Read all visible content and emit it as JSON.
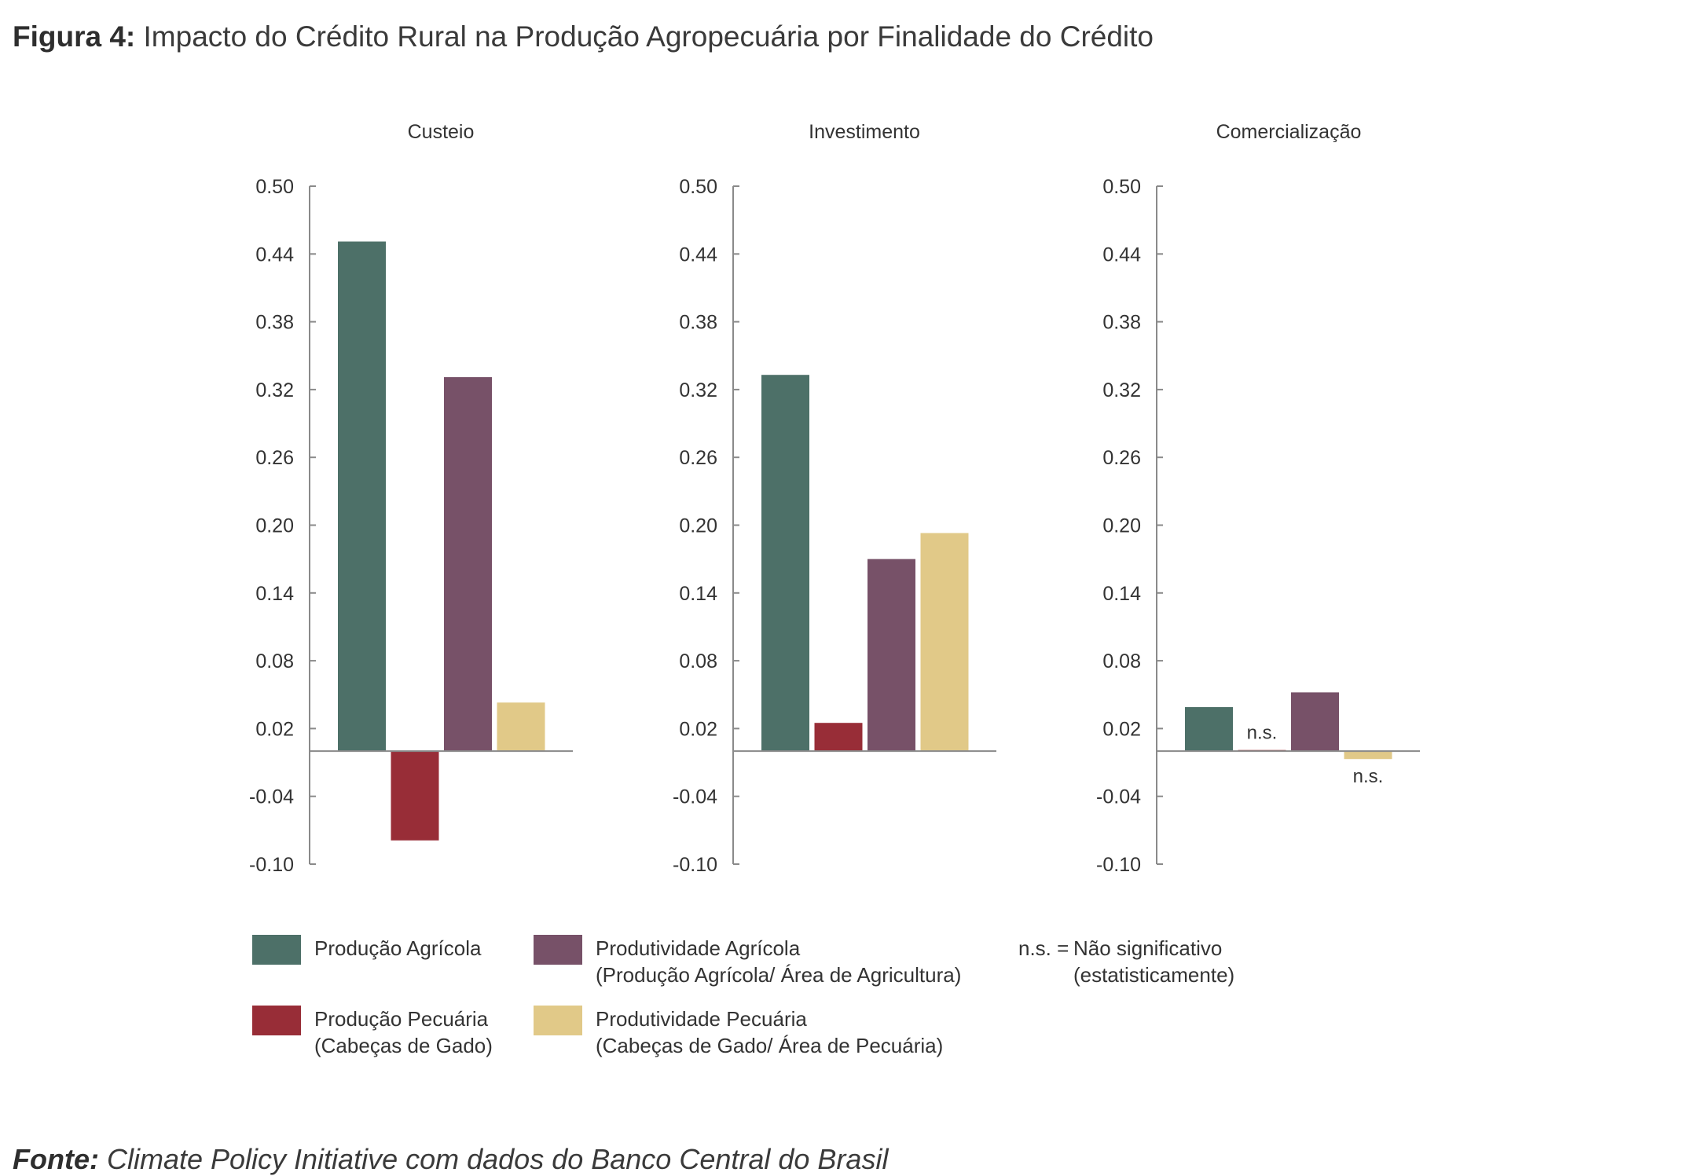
{
  "header": {
    "title_prefix": "Figura 4:",
    "title_text": " Impacto do Crédito Rural na Produção Agropecuária por Finalidade do Crédito"
  },
  "chart_data": {
    "type": "bar",
    "categories": [
      "Custeio",
      "Investimento",
      "Comercialização"
    ],
    "y_ticks": [
      "0.50",
      "0.44",
      "0.38",
      "0.32",
      "0.26",
      "0.20",
      "0.14",
      "0.08",
      "0.02",
      "-0.04",
      "-0.10"
    ],
    "ylim": [
      -0.1,
      0.5
    ],
    "series": [
      {
        "name": "Produção Agrícola",
        "color": "#4d7068",
        "values": [
          0.451,
          0.333,
          0.039
        ]
      },
      {
        "name": "Produção Pecuária (Cabeças de Gado)",
        "color": "#982d37",
        "values": [
          -0.079,
          0.025,
          0.001
        ]
      },
      {
        "name": "Produtividade Agrícola (Produção Agrícola/ Área de Agricultura)",
        "color": "#775168",
        "values": [
          0.331,
          0.17,
          0.052
        ]
      },
      {
        "name": "Produtividade Pecuária (Cabeças de Gado/ Área de Pecuária)",
        "color": "#e1c988",
        "values": [
          0.043,
          0.193,
          -0.007
        ]
      }
    ],
    "annotations": [
      {
        "panel": 2,
        "series": 1,
        "text": "n.s."
      },
      {
        "panel": 2,
        "series": 3,
        "text": "n.s."
      }
    ]
  },
  "legend": {
    "items": [
      {
        "lines": [
          "Produção Agrícola"
        ],
        "color": "#4d7068"
      },
      {
        "lines": [
          "Produção Pecuária",
          "(Cabeças de Gado)"
        ],
        "color": "#982d37"
      },
      {
        "lines": [
          "Produtividade Agrícola",
          "(Produção Agrícola/ Área de Agricultura)"
        ],
        "color": "#775168"
      },
      {
        "lines": [
          "Produtividade Pecuária",
          "(Cabeças de Gado/ Área de Pecuária)"
        ],
        "color": "#e1c988"
      }
    ],
    "ns_key": "n.s. =",
    "ns_lines": [
      "Não significativo",
      "(estatisticamente)"
    ]
  },
  "footer": {
    "source_prefix": "Fonte:",
    "source_text": " Climate Policy Initiative com dados do Banco Central do Brasil"
  }
}
